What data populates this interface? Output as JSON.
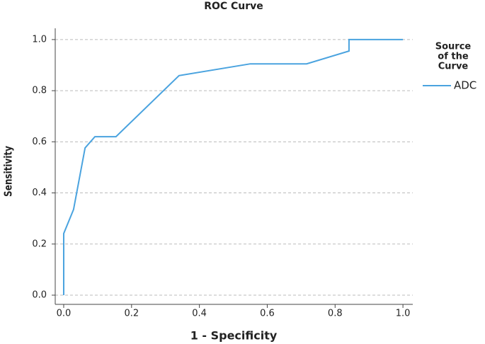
{
  "chart_data": {
    "type": "line",
    "title": "ROC Curve",
    "x_label": "1 - Specificity",
    "y_label": "Sensitivity",
    "legend_title": [
      "Source",
      "of the",
      "Curve"
    ],
    "x": [
      0,
      0,
      0.029,
      0.063,
      0.092,
      0.154,
      0.34,
      0.55,
      0.716,
      0.841,
      0.841,
      1
    ],
    "series": [
      {
        "name": "ADC",
        "color": "#4aa3df",
        "values": [
          0,
          0.241,
          0.335,
          0.576,
          0.62,
          0.62,
          0.859,
          0.905,
          0.905,
          0.955,
          1,
          1
        ]
      }
    ],
    "xlim": [
      -0.025,
      1.029
    ],
    "ylim": [
      -0.036,
      1.044
    ],
    "xticks": [
      {
        "value": 0,
        "label": "0.0"
      },
      {
        "value": 0.2,
        "label": "0.2"
      },
      {
        "value": 0.4,
        "label": "0.4"
      },
      {
        "value": 0.6,
        "label": "0.6"
      },
      {
        "value": 0.8,
        "label": "0.8"
      },
      {
        "value": 1,
        "label": "1.0"
      }
    ],
    "yticks": [
      {
        "value": 0,
        "label": "0.0"
      },
      {
        "value": 0.2,
        "label": "0.2"
      },
      {
        "value": 0.4,
        "label": "0.4"
      },
      {
        "value": 0.6,
        "label": "0.6"
      },
      {
        "value": 0.8,
        "label": "0.8"
      },
      {
        "value": 1,
        "label": "1.0"
      }
    ],
    "grid": true
  }
}
